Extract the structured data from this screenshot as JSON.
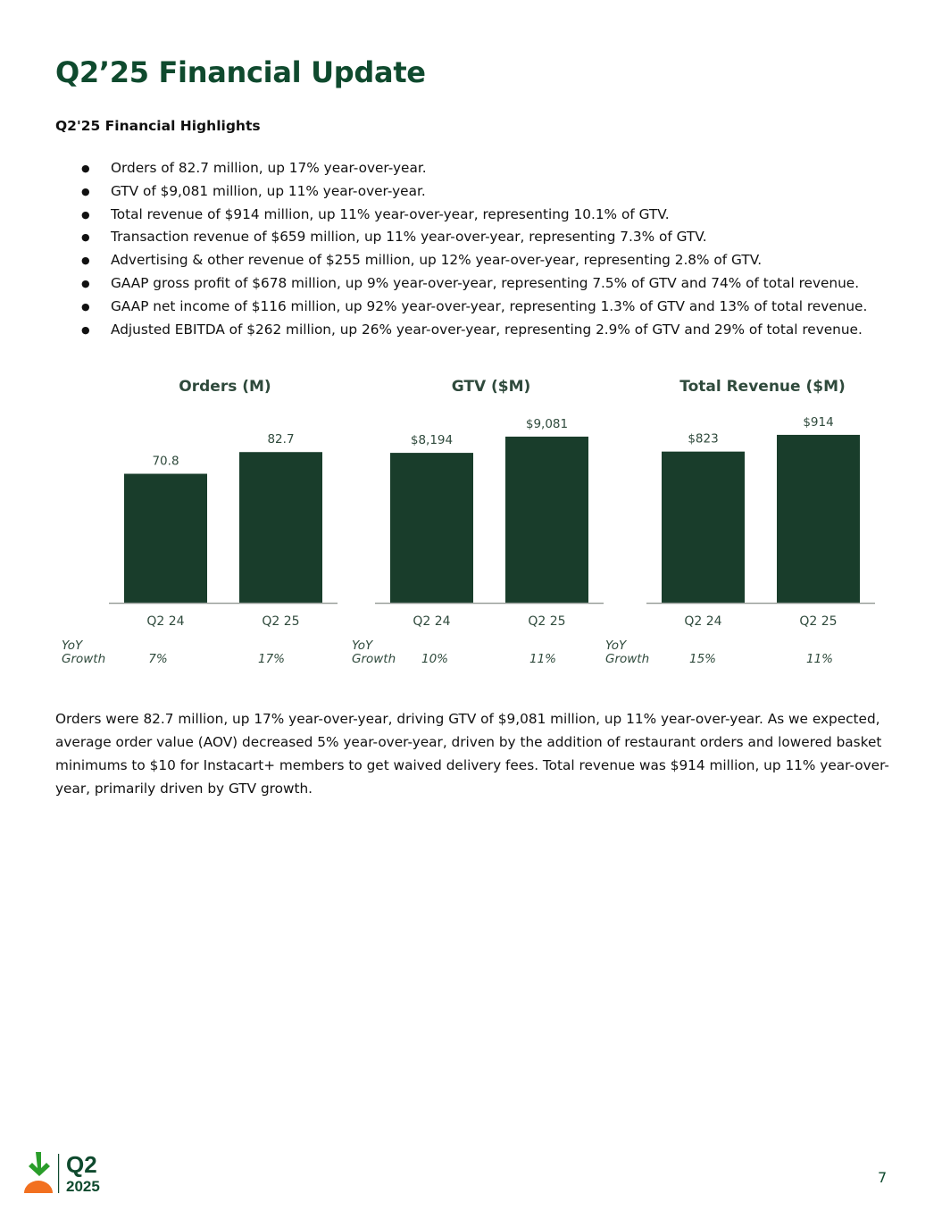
{
  "header": {
    "title": "Q2’25 Financial Update"
  },
  "highlights": {
    "heading": "Q2'25 Financial Highlights",
    "items": [
      "Orders of 82.7 million, up 17% year-over-year.",
      "GTV of $9,081 million, up 11% year-over-year.",
      "Total revenue of $914 million, up 11% year-over-year, representing 10.1% of GTV.",
      "Transaction revenue of $659 million, up 11% year-over-year, representing 7.3% of GTV.",
      "Advertising & other revenue of $255 million, up 12% year-over-year, representing 2.8% of GTV.",
      "GAAP gross profit of $678 million, up 9% year-over-year, representing 7.5% of GTV and 74% of total revenue.",
      "GAAP net income of $116 million, up 92% year-over-year, representing 1.3% of GTV and 13% of total revenue.",
      "Adjusted EBITDA of $262 million, up 26% year-over-year, representing 2.9% of GTV and 29% of total revenue."
    ]
  },
  "chart_data": [
    {
      "type": "bar",
      "title": "Orders (M)",
      "categories": [
        "Q2 24",
        "Q2 25"
      ],
      "values": [
        70.8,
        82.7
      ],
      "value_labels": [
        "70.8",
        "82.7"
      ],
      "ylim": [
        0,
        98
      ],
      "yoy_label": [
        "YoY",
        "Growth"
      ],
      "yoy_growth": [
        "7%",
        "17%"
      ]
    },
    {
      "type": "bar",
      "title": "GTV ($M)",
      "categories": [
        "Q2 24",
        "Q2 25"
      ],
      "values": [
        8194,
        9081
      ],
      "value_labels": [
        "$8,194",
        "$9,081"
      ],
      "ylim": [
        0,
        9760
      ],
      "yoy_label": [
        "YoY",
        "Growth"
      ],
      "yoy_growth": [
        "10%",
        "11%"
      ]
    },
    {
      "type": "bar",
      "title": "Total Revenue ($M)",
      "categories": [
        "Q2 24",
        "Q2 25"
      ],
      "values": [
        823,
        914
      ],
      "value_labels": [
        "$823",
        "$914"
      ],
      "ylim": [
        0,
        972
      ],
      "yoy_label": [
        "YoY",
        "Growth"
      ],
      "yoy_growth": [
        "15%",
        "11%"
      ]
    }
  ],
  "paragraph": "Orders were 82.7 million, up 17% year-over-year, driving GTV of $9,081 million, up 11% year-over-year. As we expected, average order value (AOV) decreased 5% year-over-year, driven by the addition of restaurant orders and lowered basket minimums to $10 for Instacart+ members to get waived delivery fees. Total revenue was $914 million, up 11% year-over-year, primarily driven by GTV growth.",
  "footer": {
    "logo_quarter": "Q2",
    "logo_year": "2025",
    "page_number": "7"
  },
  "colors": {
    "bar": "#193d2b",
    "title": "#0f4a2e",
    "axis": "#9aa09c",
    "label": "#2f4a3c",
    "logo_green": "#2a9d2a",
    "logo_orange": "#f2701f"
  }
}
